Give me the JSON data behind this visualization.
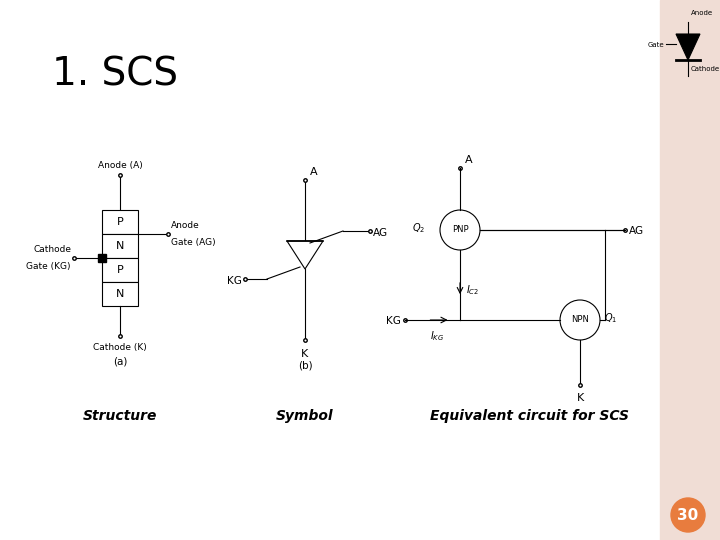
{
  "title": "1. SCS",
  "title_fontsize": 28,
  "bg_color": "#ffffff",
  "slide_bg": "#f0ddd5",
  "label_structure": "Structure",
  "label_symbol": "Symbol",
  "label_equiv": "Equivalent circuit for SCS",
  "label_fontsize": 10,
  "page_number": "30",
  "page_circle_color": "#e87c3e",
  "footnote_a": "(a)",
  "footnote_b": "(b)"
}
